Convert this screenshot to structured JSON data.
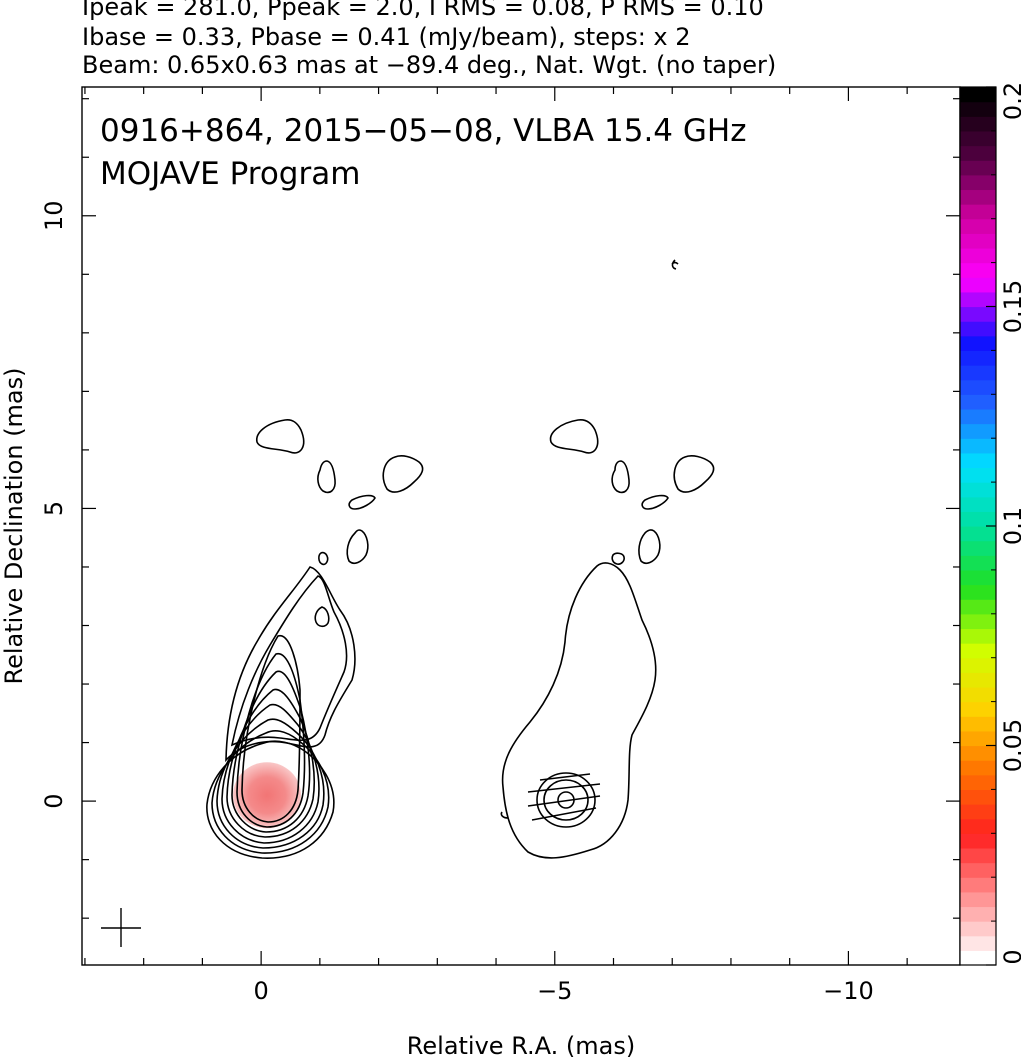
{
  "header": {
    "line1": "Ipeak = 281.0, Ppeak = 2.0, I RMS = 0.08, P RMS = 0.10",
    "line2": "Ibase = 0.33, Pbase = 0.41 (mJy/beam), steps: x 2",
    "line3": "Beam: 0.65x0.63 mas at −89.4 deg., Nat. Wgt. (no taper)"
  },
  "chart_data": {
    "type": "contour",
    "title": "0916+864, 2015−05−08, VLBA 15.4 GHz",
    "subtitle": "MOJAVE Program",
    "xlabel": "Relative R.A. (mas)",
    "ylabel": "Relative Declination (mas)",
    "xlim": [
      3.05,
      -11.9
    ],
    "ylim": [
      -2.8,
      12.2
    ],
    "xticks": [
      {
        "value": 0,
        "label": "0"
      },
      {
        "value": -5,
        "label": "−5"
      },
      {
        "value": -10,
        "label": "−10"
      }
    ],
    "yticks": [
      {
        "value": 0,
        "label": "0"
      },
      {
        "value": 5,
        "label": "5"
      },
      {
        "value": 10,
        "label": "10"
      }
    ],
    "colorbar": {
      "range": [
        0,
        0.2
      ],
      "ticks": [
        {
          "value": 0,
          "label": "0"
        },
        {
          "value": 0.05,
          "label": "0.05"
        },
        {
          "value": 0.1,
          "label": "0.1"
        },
        {
          "value": 0.15,
          "label": "0.15"
        },
        {
          "value": 0.2,
          "label": "0.2"
        }
      ],
      "colors": [
        "#ffffff",
        "#ff9090",
        "#ff2020",
        "#ff7000",
        "#ffd000",
        "#d0ff00",
        "#20e020",
        "#00e0a0",
        "#00e0ff",
        "#2060ff",
        "#1010ff",
        "#ff00ff",
        "#d000a0",
        "#500040",
        "#000000"
      ]
    },
    "total_intensity_peak": {
      "x": -0.1,
      "y": 0.1,
      "level": 0.02,
      "color": "#f08080"
    },
    "panels": [
      {
        "name": "total-intensity",
        "x_offset": 0
      },
      {
        "name": "polarization",
        "x_offset": -5.0
      }
    ]
  }
}
